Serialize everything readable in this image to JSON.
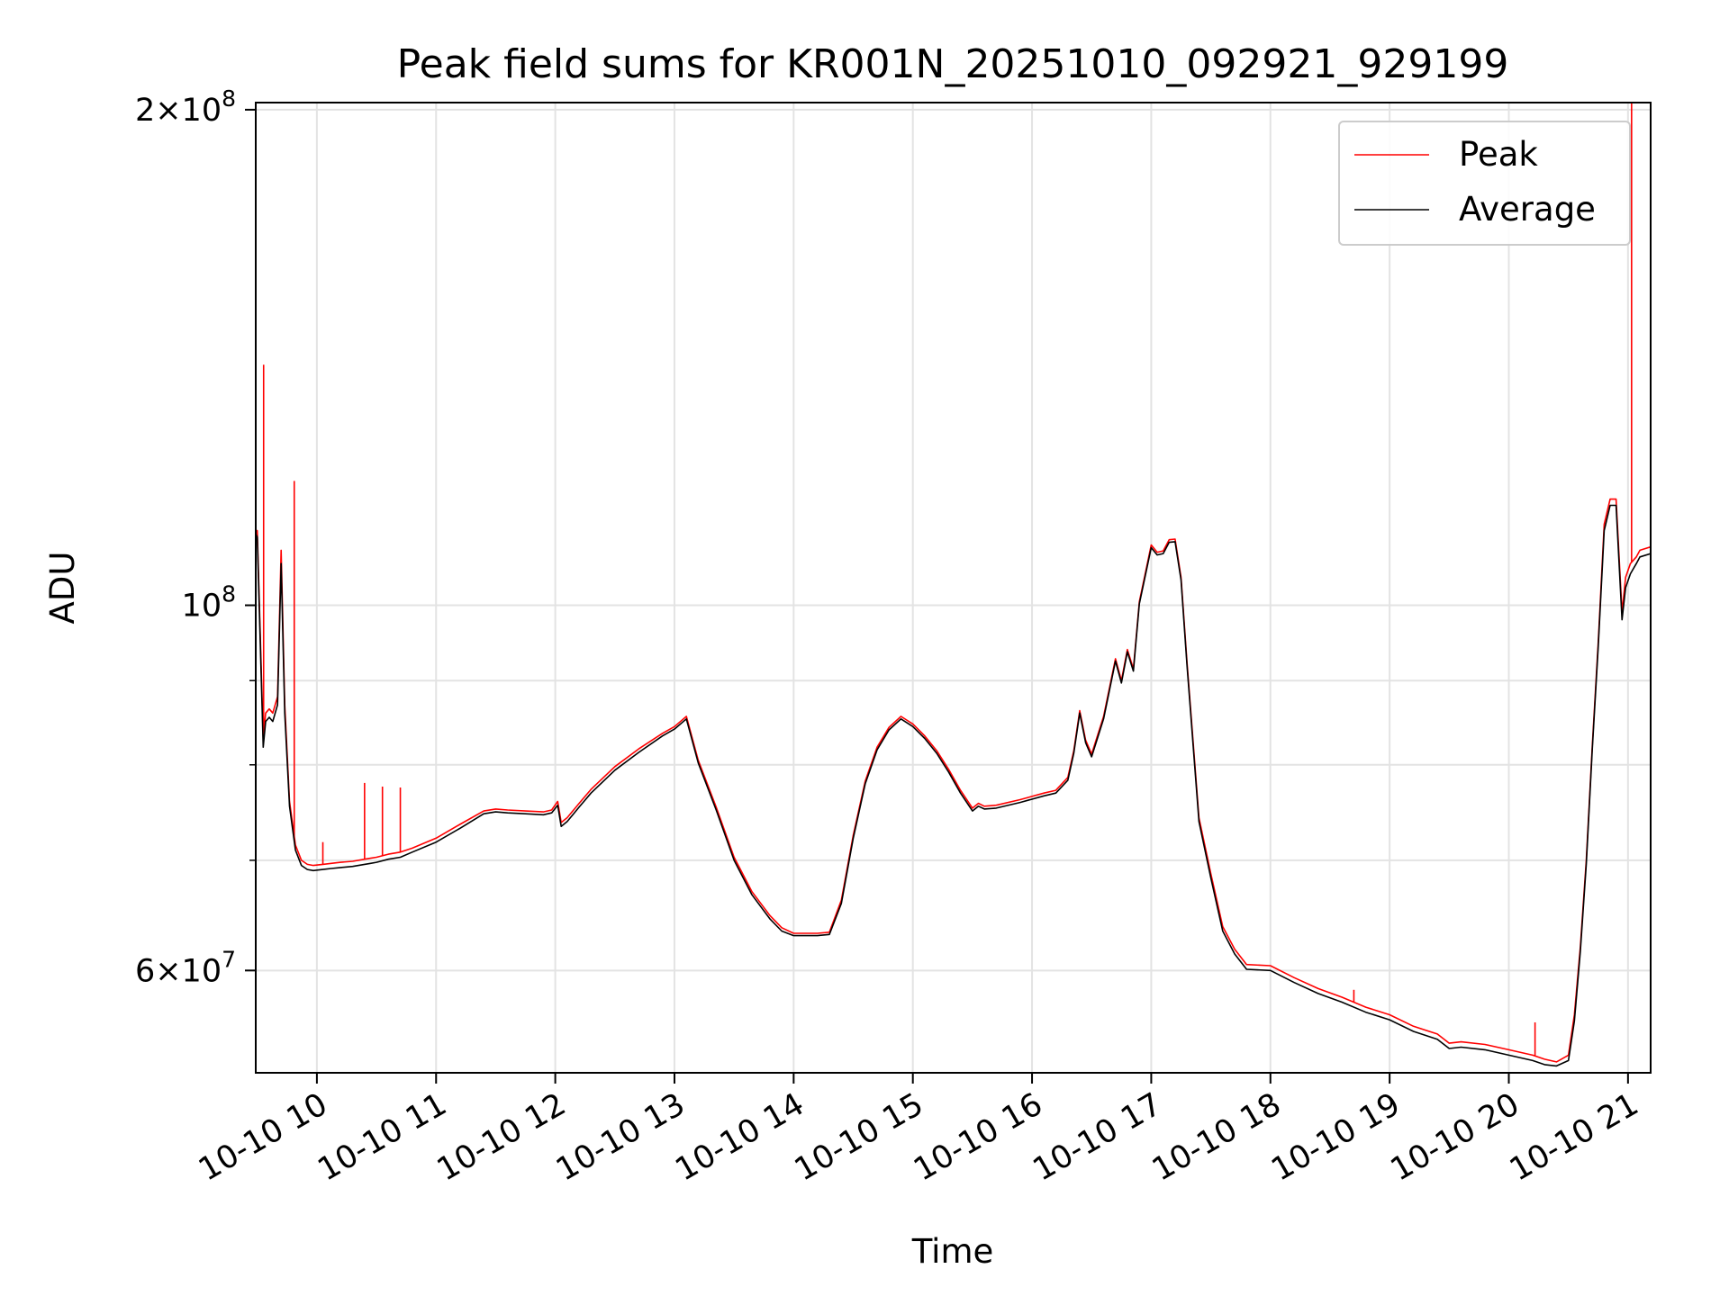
{
  "chart_data": {
    "type": "line",
    "title": "Peak field sums for KR001N_20251010_092921_929199",
    "xlabel": "Time",
    "ylabel": "ADU",
    "yscale": "log",
    "ylim": [
      52000000,
      202000000
    ],
    "xlim": [
      9.487,
      21.19
    ],
    "grid": true,
    "legend_position": "top-right",
    "x_ticks": [
      {
        "value": 10,
        "label": "10-10 10"
      },
      {
        "value": 11,
        "label": "10-10 11"
      },
      {
        "value": 12,
        "label": "10-10 12"
      },
      {
        "value": 13,
        "label": "10-10 13"
      },
      {
        "value": 14,
        "label": "10-10 14"
      },
      {
        "value": 15,
        "label": "10-10 15"
      },
      {
        "value": 16,
        "label": "10-10 16"
      },
      {
        "value": 17,
        "label": "10-10 17"
      },
      {
        "value": 18,
        "label": "10-10 18"
      },
      {
        "value": 19,
        "label": "10-10 19"
      },
      {
        "value": 20,
        "label": "10-10 20"
      },
      {
        "value": 21,
        "label": "10-10 21"
      }
    ],
    "y_ticks": [
      {
        "value": 60000000,
        "mantissa": "6",
        "exponent": "7"
      },
      {
        "value": 100000000,
        "mantissa": "",
        "exponent": "8"
      },
      {
        "value": 200000000,
        "mantissa": "2",
        "exponent": "8"
      }
    ],
    "y_minor": [
      70000000,
      80000000,
      90000000
    ],
    "series": [
      {
        "name": "Peak",
        "color": "#ff0000",
        "x": [
          9.487,
          9.5,
          9.55,
          9.57,
          9.6,
          9.63,
          9.67,
          9.7,
          9.73,
          9.77,
          9.82,
          9.87,
          9.92,
          9.97,
          10.05,
          10.12,
          10.2,
          10.3,
          10.4,
          10.45,
          10.5,
          10.6,
          10.7,
          10.8,
          11.0,
          11.2,
          11.4,
          11.5,
          11.6,
          11.75,
          11.9,
          11.97,
          12.02,
          12.05,
          12.1,
          12.2,
          12.3,
          12.5,
          12.7,
          12.9,
          13.0,
          13.1,
          13.2,
          13.35,
          13.5,
          13.65,
          13.8,
          13.9,
          14.0,
          14.2,
          14.3,
          14.4,
          14.5,
          14.6,
          14.7,
          14.8,
          14.9,
          15.0,
          15.1,
          15.2,
          15.3,
          15.4,
          15.5,
          15.55,
          15.6,
          15.7,
          15.9,
          16.1,
          16.2,
          16.3,
          16.35,
          16.4,
          16.45,
          16.5,
          16.6,
          16.7,
          16.75,
          16.8,
          16.85,
          16.9,
          17.0,
          17.05,
          17.1,
          17.15,
          17.2,
          17.25,
          17.3,
          17.4,
          17.5,
          17.6,
          17.7,
          17.8,
          18.0,
          18.2,
          18.4,
          18.6,
          18.8,
          19.0,
          19.2,
          19.4,
          19.5,
          19.6,
          19.8,
          20.0,
          20.2,
          20.3,
          20.4,
          20.5,
          20.55,
          20.6,
          20.65,
          20.7,
          20.75,
          20.8,
          20.85,
          20.9,
          20.95,
          20.98,
          21.02,
          21.07,
          21.1,
          21.19
        ],
        "y": [
          111000000,
          111000000,
          83000000,
          86000000,
          86500000,
          86000000,
          88000000,
          108000000,
          87000000,
          76000000,
          71500000,
          70000000,
          69600000,
          69500000,
          69600000,
          69700000,
          69800000,
          69900000,
          70100000,
          70200000,
          70300000,
          70600000,
          70800000,
          71200000,
          72200000,
          73600000,
          75000000,
          75200000,
          75100000,
          75000000,
          74900000,
          75100000,
          76000000,
          73800000,
          74300000,
          75800000,
          77300000,
          79800000,
          81800000,
          83600000,
          84400000,
          85600000,
          80500000,
          75400000,
          70300000,
          67000000,
          64800000,
          63700000,
          63200000,
          63200000,
          63300000,
          66200000,
          72500000,
          78200000,
          82000000,
          84300000,
          85600000,
          84700000,
          83300000,
          81600000,
          79500000,
          77200000,
          75300000,
          75800000,
          75500000,
          75600000,
          76200000,
          76900000,
          77200000,
          78600000,
          81600000,
          86300000,
          82800000,
          81200000,
          85600000,
          92800000,
          90000000,
          94000000,
          91500000,
          100500000,
          108800000,
          107700000,
          107900000,
          109600000,
          109700000,
          104000000,
          92400000,
          74300000,
          68700000,
          63800000,
          61800000,
          60500000,
          60400000,
          59400000,
          58500000,
          57800000,
          57000000,
          56400000,
          55500000,
          54900000,
          54200000,
          54300000,
          54100000,
          53700000,
          53300000,
          53000000,
          52800000,
          53300000,
          56400000,
          62000000,
          70000000,
          82000000,
          95000000,
          112000000,
          116000000,
          116000000,
          99000000,
          104000000,
          106000000,
          107000000,
          108000000,
          108500000
        ],
        "spikes": [
          {
            "x": 9.553,
            "y": 140000000
          },
          {
            "x": 9.81,
            "y": 119000000
          },
          {
            "x": 10.05,
            "y": 71800000
          },
          {
            "x": 10.4,
            "y": 78000000
          },
          {
            "x": 10.55,
            "y": 77600000
          },
          {
            "x": 10.7,
            "y": 77500000
          },
          {
            "x": 18.7,
            "y": 58400000
          },
          {
            "x": 20.22,
            "y": 55800000
          },
          {
            "x": 21.03,
            "y": 202000000
          }
        ]
      },
      {
        "name": "Average",
        "color": "#000000",
        "x": [
          9.487,
          9.5,
          9.55,
          9.57,
          9.6,
          9.63,
          9.67,
          9.7,
          9.73,
          9.77,
          9.82,
          9.87,
          9.92,
          9.97,
          10.05,
          10.12,
          10.2,
          10.3,
          10.4,
          10.45,
          10.5,
          10.6,
          10.7,
          10.8,
          11.0,
          11.2,
          11.4,
          11.5,
          11.6,
          11.75,
          11.9,
          11.97,
          12.02,
          12.05,
          12.1,
          12.2,
          12.3,
          12.5,
          12.7,
          12.9,
          13.0,
          13.1,
          13.2,
          13.35,
          13.5,
          13.65,
          13.8,
          13.9,
          14.0,
          14.2,
          14.3,
          14.4,
          14.5,
          14.6,
          14.7,
          14.8,
          14.9,
          15.0,
          15.1,
          15.2,
          15.3,
          15.4,
          15.5,
          15.55,
          15.6,
          15.7,
          15.9,
          16.1,
          16.2,
          16.3,
          16.35,
          16.4,
          16.45,
          16.5,
          16.6,
          16.7,
          16.75,
          16.8,
          16.85,
          16.9,
          17.0,
          17.05,
          17.1,
          17.15,
          17.2,
          17.25,
          17.3,
          17.4,
          17.5,
          17.6,
          17.7,
          17.8,
          18.0,
          18.2,
          18.4,
          18.6,
          18.8,
          19.0,
          19.2,
          19.4,
          19.5,
          19.6,
          19.8,
          20.0,
          20.2,
          20.3,
          20.4,
          20.5,
          20.55,
          20.6,
          20.65,
          20.7,
          20.75,
          20.8,
          20.85,
          20.9,
          20.95,
          20.98,
          21.02,
          21.07,
          21.1,
          21.19
        ],
        "y": [
          110500000,
          110000000,
          82000000,
          85000000,
          85500000,
          85000000,
          87000000,
          106000000,
          86000000,
          75500000,
          71000000,
          69500000,
          69100000,
          69000000,
          69100000,
          69200000,
          69300000,
          69400000,
          69600000,
          69700000,
          69800000,
          70100000,
          70300000,
          70800000,
          71800000,
          73200000,
          74700000,
          74900000,
          74800000,
          74700000,
          74600000,
          74800000,
          75600000,
          73400000,
          73900000,
          75400000,
          76900000,
          79400000,
          81400000,
          83300000,
          84100000,
          85300000,
          80200000,
          75100000,
          70000000,
          66700000,
          64500000,
          63400000,
          63000000,
          63000000,
          63100000,
          65900000,
          72200000,
          77900000,
          81700000,
          84000000,
          85300000,
          84400000,
          83000000,
          81300000,
          79200000,
          76900000,
          75000000,
          75500000,
          75200000,
          75300000,
          75900000,
          76600000,
          76900000,
          78300000,
          81300000,
          86000000,
          82500000,
          80900000,
          85300000,
          92500000,
          89700000,
          93700000,
          91200000,
          100200000,
          108400000,
          107300000,
          107500000,
          109200000,
          109300000,
          103600000,
          92000000,
          73900000,
          68300000,
          63400000,
          61400000,
          60100000,
          60000000,
          59000000,
          58100000,
          57400000,
          56600000,
          56000000,
          55100000,
          54500000,
          53800000,
          53900000,
          53700000,
          53300000,
          52900000,
          52600000,
          52500000,
          52900000,
          55900000,
          61600000,
          69600000,
          81600000,
          94400000,
          111000000,
          115000000,
          115000000,
          98000000,
          102500000,
          104500000,
          106000000,
          107000000,
          107500000
        ]
      }
    ]
  }
}
